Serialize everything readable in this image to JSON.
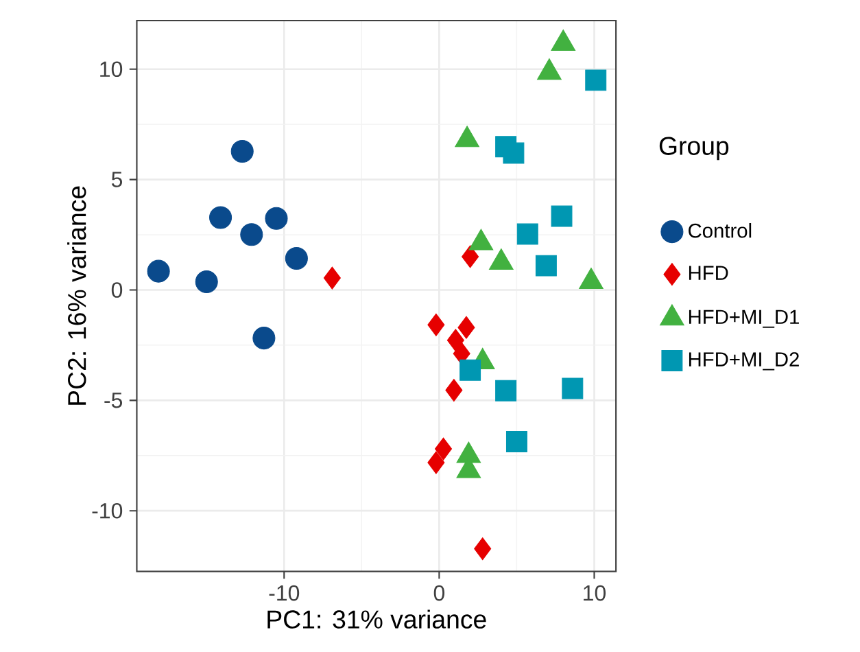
{
  "chart_data": {
    "type": "scatter",
    "xlabel": "PC1: 31% variance",
    "ylabel": "PC2: 16% variance",
    "legend_title": "Group",
    "legend": "right",
    "grid": true,
    "xlim": [
      -19.5,
      11.4
    ],
    "ylim": [
      -12.75,
      12.2
    ],
    "xticks": [
      -10,
      0,
      10
    ],
    "yticks": [
      -10,
      -5,
      0,
      5,
      10
    ],
    "series": [
      {
        "name": "Control",
        "color": "#0a4a8c",
        "marker": "circle",
        "x": [
          -12.7,
          -14.1,
          -10.5,
          -12.1,
          -9.2,
          -18.1,
          -15.0,
          -11.3
        ],
        "values": [
          6.28,
          3.28,
          3.24,
          2.51,
          1.43,
          0.85,
          0.37,
          -2.18
        ]
      },
      {
        "name": "HFD",
        "color": "#e60000",
        "marker": "diamond",
        "x": [
          -6.9,
          2.0,
          -0.2,
          1.75,
          1.06,
          1.45,
          0.95,
          0.27,
          -0.2,
          2.8
        ],
        "values": [
          0.54,
          1.51,
          -1.58,
          -1.7,
          -2.28,
          -2.88,
          -4.54,
          -7.2,
          -7.82,
          -11.72
        ]
      },
      {
        "name": "HFD+MI_D1",
        "color": "#42b140",
        "marker": "triangle",
        "x": [
          8.0,
          7.1,
          1.8,
          2.7,
          4.0,
          9.8,
          2.8,
          1.9,
          1.9
        ],
        "values": [
          11.16,
          9.85,
          6.8,
          2.13,
          1.24,
          0.37,
          -3.26,
          -7.51,
          -8.19
        ]
      },
      {
        "name": "HFD+MI_D2",
        "color": "#0097b2",
        "marker": "square",
        "x": [
          10.1,
          4.3,
          4.8,
          7.9,
          5.7,
          6.9,
          2.0,
          4.3,
          8.6,
          5.0
        ],
        "values": [
          9.5,
          6.49,
          6.2,
          3.34,
          2.53,
          1.1,
          -3.63,
          -4.56,
          -4.46,
          -6.87
        ]
      }
    ]
  }
}
